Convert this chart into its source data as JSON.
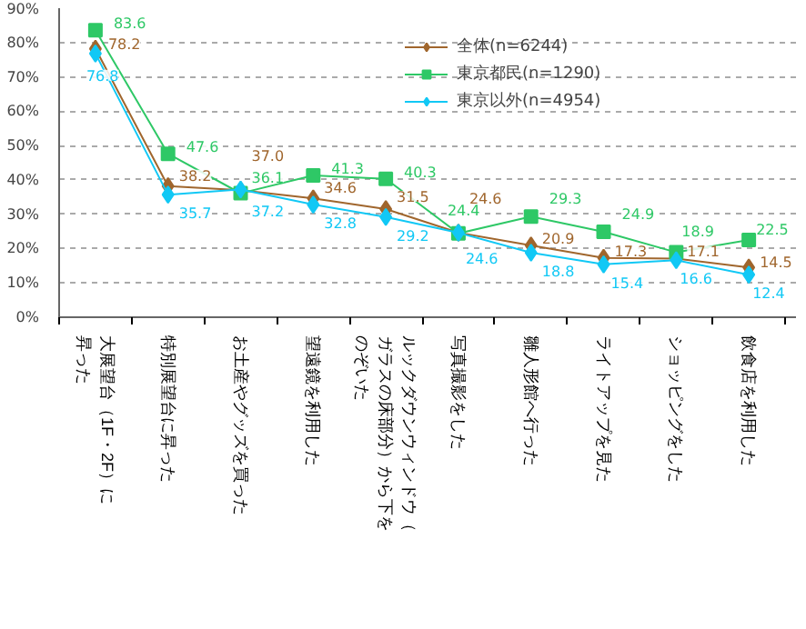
{
  "chart_data": {
    "type": "line",
    "categories": [
      "大展望台（1F・2F）に昇った",
      "特別展望台に昇った",
      "お土産やグッズを買った",
      "望遠鏡を利用した",
      "ルックダウンウィンドウ（ガラスの床部分）から下をのぞいた",
      "写真撮影をした",
      "雛人形館へ行った",
      "ライトアップを見た",
      "ショッピングをした",
      "飲食店を利用した"
    ],
    "series": [
      {
        "name": "全体(n=6244)",
        "color": "#a0662d",
        "marker": "diamond",
        "values": [
          78.2,
          38.2,
          37.0,
          34.6,
          31.5,
          24.6,
          20.9,
          17.3,
          17.1,
          14.5
        ],
        "value_labels": [
          "78.2",
          "38.2",
          "37.0",
          "34.6",
          "31.5",
          "24.6",
          "20.9",
          "17.3",
          "17.1",
          "14.5"
        ]
      },
      {
        "name": "東京都民(n=1290)",
        "color": "#2ec866",
        "marker": "square",
        "values": [
          83.6,
          47.6,
          36.1,
          41.3,
          40.3,
          24.4,
          29.3,
          24.9,
          18.9,
          22.5
        ],
        "value_labels": [
          "83.6",
          "47.6",
          "36.1",
          "41.3",
          "40.3",
          "24.4",
          "29.3",
          "24.9",
          "18.9",
          "22.5"
        ]
      },
      {
        "name": "東京以外(n=4954)",
        "color": "#11c8f5",
        "marker": "diamond",
        "values": [
          76.8,
          35.7,
          37.2,
          32.8,
          29.2,
          24.6,
          18.8,
          15.4,
          16.6,
          12.4
        ],
        "value_labels": [
          "76.8",
          "35.7",
          "37.2",
          "32.8",
          "29.2",
          "24.6",
          "18.8",
          "15.4",
          "16.6",
          "12.4"
        ]
      }
    ],
    "ylim": [
      0,
      90
    ],
    "yticks": [
      {
        "value": 0,
        "label": "0%"
      },
      {
        "value": 10,
        "label": "10%"
      },
      {
        "value": 20,
        "label": "20%"
      },
      {
        "value": 30,
        "label": "30%"
      },
      {
        "value": 40,
        "label": "40%"
      },
      {
        "value": 50,
        "label": "50%"
      },
      {
        "value": 60,
        "label": "60%"
      },
      {
        "value": 70,
        "label": "70%"
      },
      {
        "value": 80,
        "label": "80%"
      },
      {
        "value": 90,
        "label": "90%"
      }
    ],
    "grid": "y",
    "legend": "top right",
    "line_style": "solid"
  }
}
